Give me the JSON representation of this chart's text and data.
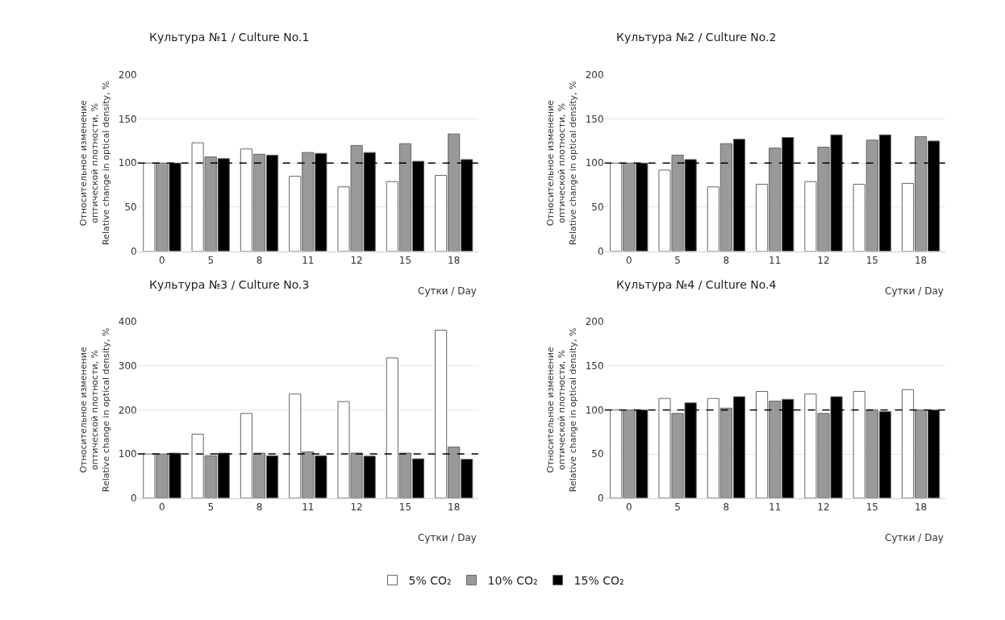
{
  "chart_data": [
    {
      "type": "bar",
      "title": "Культура №1 / Culture No.1",
      "xlabel": "Сутки / Day",
      "ylabel": "Относительное изменение\nоптической плотности, %\nRelative change in optical density, %",
      "categories": [
        "0",
        "5",
        "8",
        "11",
        "12",
        "15",
        "18"
      ],
      "ylim": [
        0,
        200
      ],
      "yticks": [
        0,
        50,
        100,
        150,
        200
      ],
      "grid": "y",
      "legend": "bottom",
      "ref_lines": [
        {
          "axis": "y",
          "value": 100,
          "color": "#000000",
          "line_style": "dashed"
        }
      ],
      "series": [
        {
          "name": "5% CO₂",
          "color": "#ffffff",
          "values": [
            100,
            123,
            116,
            85,
            73,
            79,
            86
          ]
        },
        {
          "name": "10% CO₂",
          "color": "#999999",
          "values": [
            100,
            107,
            110,
            112,
            120,
            122,
            133
          ]
        },
        {
          "name": "15% CO₂",
          "color": "#000000",
          "values": [
            100,
            105,
            109,
            111,
            112,
            102,
            104
          ]
        }
      ]
    },
    {
      "type": "bar",
      "title": "Культура №2 / Culture No.2",
      "xlabel": "Сутки / Day",
      "ylabel": "Относительное изменение\nоптической плотности, %\nRelative change in optical density, %",
      "categories": [
        "0",
        "5",
        "8",
        "11",
        "12",
        "15",
        "18"
      ],
      "ylim": [
        0,
        200
      ],
      "yticks": [
        0,
        50,
        100,
        150,
        200
      ],
      "grid": "y",
      "legend": "bottom",
      "ref_lines": [
        {
          "axis": "y",
          "value": 100,
          "color": "#000000",
          "line_style": "dashed"
        }
      ],
      "series": [
        {
          "name": "5% CO₂",
          "color": "#ffffff",
          "values": [
            100,
            92,
            73,
            76,
            79,
            76,
            77
          ]
        },
        {
          "name": "10% CO₂",
          "color": "#999999",
          "values": [
            100,
            109,
            122,
            117,
            118,
            126,
            130
          ]
        },
        {
          "name": "15% CO₂",
          "color": "#000000",
          "values": [
            100,
            104,
            127,
            129,
            132,
            132,
            125
          ]
        }
      ]
    },
    {
      "type": "bar",
      "title": "Культура №3 / Culture No.3",
      "xlabel": "Сутки / Day",
      "ylabel": "Относительное изменение\nоптической плотности, %\nRelative change in optical density, %",
      "categories": [
        "0",
        "5",
        "8",
        "11",
        "12",
        "15",
        "18"
      ],
      "ylim": [
        0,
        400
      ],
      "yticks": [
        0,
        100,
        200,
        300,
        400
      ],
      "grid": "y",
      "legend": "bottom",
      "ref_lines": [
        {
          "axis": "y",
          "value": 100,
          "color": "#000000",
          "line_style": "dashed"
        }
      ],
      "series": [
        {
          "name": "5% CO₂",
          "color": "#ffffff",
          "values": [
            100,
            145,
            192,
            236,
            219,
            318,
            381
          ]
        },
        {
          "name": "10% CO₂",
          "color": "#999999",
          "values": [
            100,
            96,
            102,
            105,
            102,
            102,
            116
          ]
        },
        {
          "name": "15% CO₂",
          "color": "#000000",
          "values": [
            102,
            102,
            96,
            96,
            95,
            89,
            88
          ]
        }
      ]
    },
    {
      "type": "bar",
      "title": "Культура №4 / Culture No.4",
      "xlabel": "Сутки / Day",
      "ylabel": "Относительное изменение\nоптической плотности, %\nRelative change in optical density, %",
      "categories": [
        "0",
        "5",
        "8",
        "11",
        "12",
        "15",
        "18"
      ],
      "ylim": [
        0,
        200
      ],
      "yticks": [
        0,
        50,
        100,
        150,
        200
      ],
      "grid": "y",
      "legend": "bottom",
      "ref_lines": [
        {
          "axis": "y",
          "value": 100,
          "color": "#000000",
          "line_style": "dashed"
        }
      ],
      "series": [
        {
          "name": "5% CO₂",
          "color": "#ffffff",
          "values": [
            100,
            113,
            113,
            121,
            118,
            121,
            123
          ]
        },
        {
          "name": "10% CO₂",
          "color": "#999999",
          "values": [
            100,
            96,
            102,
            110,
            96,
            100,
            100
          ]
        },
        {
          "name": "15% CO₂",
          "color": "#000000",
          "values": [
            100,
            108,
            115,
            112,
            115,
            98,
            100
          ]
        }
      ]
    }
  ]
}
